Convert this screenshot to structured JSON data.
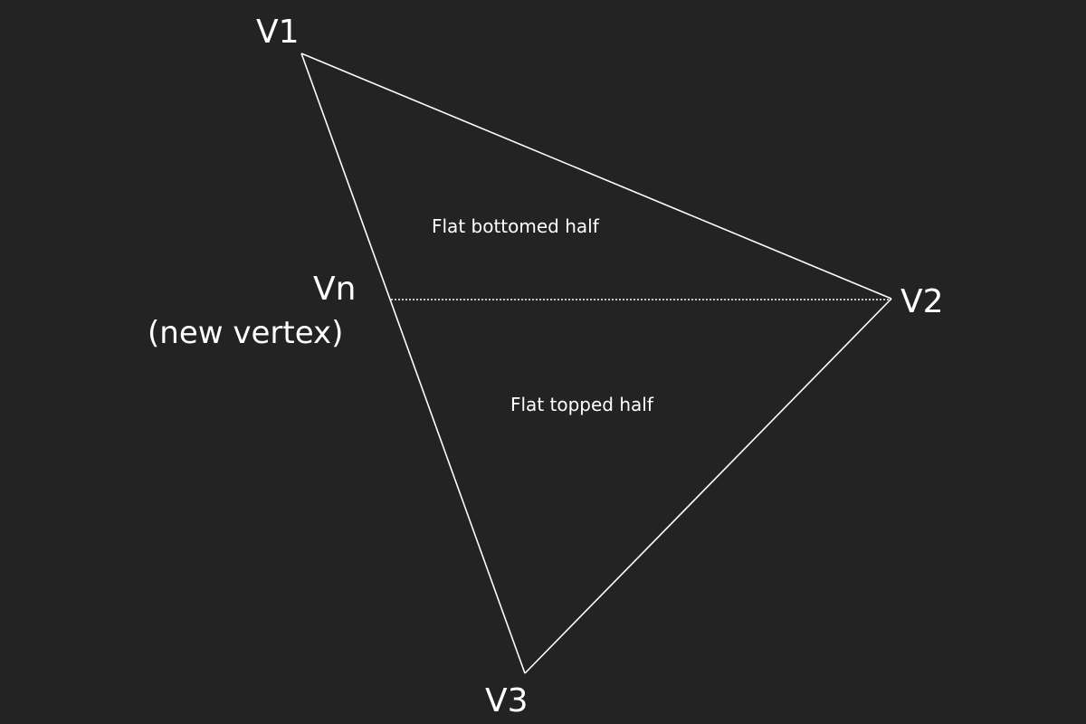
{
  "diagram": {
    "vertices": {
      "v1": "V1",
      "v2": "V2",
      "v3": "V3",
      "vn": "Vn"
    },
    "vn_note": "(new vertex)",
    "regions": {
      "top": "Flat bottomed half",
      "bottom": "Flat topped half"
    },
    "colors": {
      "background": "#232323",
      "stroke": "#ffffff",
      "text": "#ffffff"
    }
  }
}
